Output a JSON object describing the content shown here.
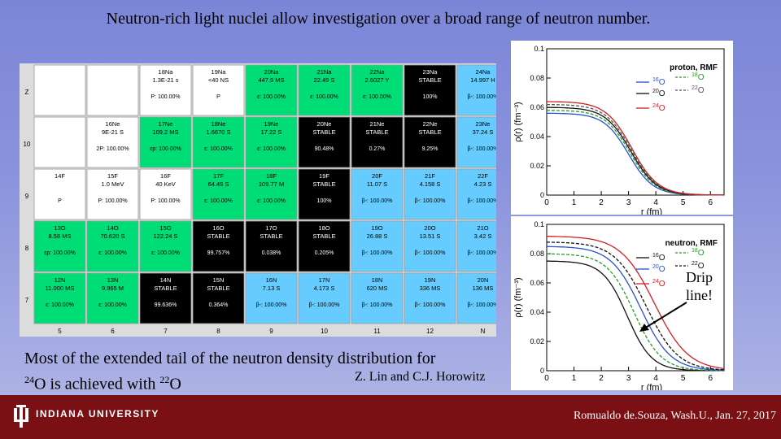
{
  "title": "Neutron-rich light nuclei allow investigation over a broad range of neutron number.",
  "caption": {
    "line1": "Most of the extended tail of the neutron density distribution for",
    "iso1_mass": "24",
    "iso1_sym": "O",
    "line2_mid": " is achieved with ",
    "iso2_mass": "22",
    "iso2_sym": "O"
  },
  "authors": "Z. Lin and C.J. Horowitz",
  "drip_note": [
    "Drip",
    "line!"
  ],
  "footer": {
    "university": "INDIANA UNIVERSITY",
    "credit": "Romualdo de.Souza, Wash.U., Jan. 27, 2017"
  },
  "colors": {
    "stable": "#000000",
    "beta_minus": "#66ccff",
    "beta_plus": "#ff6b8a",
    "ec": "#00dd77",
    "proton": "#ffffff",
    "n_emit": "#a0d060",
    "green_light": "#9be29b",
    "dark_bg": "#7a0f14"
  },
  "nuclide_chart": {
    "z_labels": [
      "Z",
      "10",
      "9",
      "8",
      "7"
    ],
    "n_labels": [
      "5",
      "6",
      "7",
      "8",
      "9",
      "10",
      "11",
      "12",
      "N"
    ],
    "rows": [
      [
        {
          "n": "",
          "hl": "",
          "dm": "",
          "c": "empty"
        },
        {
          "n": "",
          "hl": "",
          "dm": "",
          "c": "empty"
        },
        {
          "n": "18Na",
          "hl": "1.3E-21 s",
          "dm": "P: 100.00%",
          "c": "proton"
        },
        {
          "n": "19Na",
          "hl": "<40 NS",
          "dm": "P",
          "c": "proton"
        },
        {
          "n": "20Na",
          "hl": "447.9 MS",
          "dm": "ε: 100.00%",
          "c": "ec"
        },
        {
          "n": "21Na",
          "hl": "22.49 S",
          "dm": "ε: 100.00%",
          "c": "ec"
        },
        {
          "n": "22Na",
          "hl": "2.6027 Y",
          "dm": "ε: 100.00%",
          "c": "ec"
        },
        {
          "n": "23Na",
          "hl": "STABLE",
          "dm": "100%",
          "c": "stable"
        },
        {
          "n": "24Na",
          "hl": "14.997 H",
          "dm": "β-: 100.00%",
          "c": "beta"
        }
      ],
      [
        {
          "n": "",
          "hl": "",
          "dm": "",
          "c": "empty"
        },
        {
          "n": "16Ne",
          "hl": "9E-21 S",
          "dm": "2P: 100.00%",
          "c": "proton"
        },
        {
          "n": "17Ne",
          "hl": "109.2 MS",
          "dm": "εp: 100.00%",
          "c": "ec"
        },
        {
          "n": "18Ne",
          "hl": "1.6670 S",
          "dm": "ε: 100.00%",
          "c": "ec"
        },
        {
          "n": "19Ne",
          "hl": "17.22 S",
          "dm": "ε: 100.00%",
          "c": "ec"
        },
        {
          "n": "20Ne",
          "hl": "STABLE",
          "dm": "90.48%",
          "c": "stable"
        },
        {
          "n": "21Ne",
          "hl": "STABLE",
          "dm": "0.27%",
          "c": "stable"
        },
        {
          "n": "22Ne",
          "hl": "STABLE",
          "dm": "9.25%",
          "c": "stable"
        },
        {
          "n": "23Ne",
          "hl": "37.24 S",
          "dm": "β-: 100.00%",
          "c": "beta"
        }
      ],
      [
        {
          "n": "14F",
          "hl": "",
          "dm": "P",
          "c": "proton"
        },
        {
          "n": "15F",
          "hl": "1.0 MeV",
          "dm": "P: 100.00%",
          "c": "proton"
        },
        {
          "n": "16F",
          "hl": "40 KeV",
          "dm": "P: 100.00%",
          "c": "proton"
        },
        {
          "n": "17F",
          "hl": "64.49 S",
          "dm": "ε: 100.00%",
          "c": "ec"
        },
        {
          "n": "18F",
          "hl": "109.77 M",
          "dm": "ε: 100.00%",
          "c": "ec"
        },
        {
          "n": "19F",
          "hl": "STABLE",
          "dm": "100%",
          "c": "stable"
        },
        {
          "n": "20F",
          "hl": "11.07 S",
          "dm": "β-: 100.00%",
          "c": "beta"
        },
        {
          "n": "21F",
          "hl": "4.158 S",
          "dm": "β-: 100.00%",
          "c": "beta"
        },
        {
          "n": "22F",
          "hl": "4.23 S",
          "dm": "β-: 100.00%",
          "c": "beta"
        }
      ],
      [
        {
          "n": "13O",
          "hl": "8.58 MS",
          "dm": "εp: 100.00%",
          "c": "ec"
        },
        {
          "n": "14O",
          "hl": "70.620 S",
          "dm": "ε: 100.00%",
          "c": "ec"
        },
        {
          "n": "15O",
          "hl": "122.24 S",
          "dm": "ε: 100.00%",
          "c": "ec"
        },
        {
          "n": "16O",
          "hl": "STABLE",
          "dm": "99.757%",
          "c": "stable"
        },
        {
          "n": "17O",
          "hl": "STABLE",
          "dm": "0.038%",
          "c": "stable"
        },
        {
          "n": "18O",
          "hl": "STABLE",
          "dm": "0.205%",
          "c": "stable"
        },
        {
          "n": "19O",
          "hl": "26.88 S",
          "dm": "β-: 100.00%",
          "c": "beta"
        },
        {
          "n": "20O",
          "hl": "13.51 S",
          "dm": "β-: 100.00%",
          "c": "beta"
        },
        {
          "n": "21O",
          "hl": "3.42 S",
          "dm": "β-: 100.00%",
          "c": "beta"
        }
      ],
      [
        {
          "n": "12N",
          "hl": "11.000 MS",
          "dm": "ε: 100.00%",
          "c": "ec"
        },
        {
          "n": "13N",
          "hl": "9.965 M",
          "dm": "ε: 100.00%",
          "c": "ec"
        },
        {
          "n": "14N",
          "hl": "STABLE",
          "dm": "99.636%",
          "c": "stable"
        },
        {
          "n": "15N",
          "hl": "STABLE",
          "dm": "0.364%",
          "c": "stable"
        },
        {
          "n": "16N",
          "hl": "7.13 S",
          "dm": "β-: 100.00%",
          "c": "beta"
        },
        {
          "n": "17N",
          "hl": "4.173 S",
          "dm": "β-: 100.00%",
          "c": "beta"
        },
        {
          "n": "18N",
          "hl": "620 MS",
          "dm": "β-: 100.00%",
          "c": "beta"
        },
        {
          "n": "19N",
          "hl": "336 MS",
          "dm": "β-: 100.00%",
          "c": "beta"
        },
        {
          "n": "20N",
          "hl": "136 MS",
          "dm": "β-: 100.00%",
          "c": "beta"
        }
      ]
    ]
  },
  "chart_data": [
    {
      "type": "line",
      "ylabel": "ρ(r) (fm⁻³)",
      "xlabel": "r (fm)",
      "xlim": [
        0,
        6.5
      ],
      "ylim": [
        0,
        0.1
      ],
      "xticks": [
        0,
        1,
        2,
        3,
        4,
        5,
        6
      ],
      "yticks": [
        "0.1",
        "0.08",
        "0.06",
        "0.04",
        "0.02",
        "0"
      ],
      "legend_title": "proton, RMF",
      "series": [
        {
          "name": "16O",
          "color": "#2a4fd0",
          "r0": 3.0,
          "a": 0.45,
          "rho0": 0.056
        },
        {
          "name": "18O",
          "color": "#2a9a2a",
          "r0": 3.05,
          "a": 0.46,
          "rho0": 0.058
        },
        {
          "name": "20O",
          "color": "#111111",
          "r0": 3.08,
          "a": 0.47,
          "rho0": 0.06
        },
        {
          "name": "22O",
          "color": "#555555",
          "r0": 3.1,
          "a": 0.48,
          "rho0": 0.062
        },
        {
          "name": "24O",
          "color": "#d02020",
          "r0": 3.12,
          "a": 0.48,
          "rho0": 0.064
        }
      ],
      "legend_labels": [
        {
          "mass": "16",
          "sym": "O",
          "color": "#2a4fd0",
          "style": "solid"
        },
        {
          "mass": "18",
          "sym": "O",
          "color": "#2a9a2a",
          "style": "dash"
        },
        {
          "mass": "20",
          "sym": "O",
          "color": "#111111",
          "style": "solid"
        },
        {
          "mass": "22",
          "sym": "O",
          "color": "#555555",
          "style": "dash"
        },
        {
          "mass": "24",
          "sym": "O",
          "color": "#d02020",
          "style": "solid"
        }
      ]
    },
    {
      "type": "line",
      "ylabel": "ρ(r) (fm⁻³)",
      "xlabel": "r (fm)",
      "xlim": [
        0,
        6.5
      ],
      "ylim": [
        0,
        0.1
      ],
      "xticks": [
        0,
        1,
        2,
        3,
        4,
        5,
        6
      ],
      "yticks": [
        "0.1",
        "0.08",
        "0.06",
        "0.04",
        "0.02",
        "0"
      ],
      "legend_title": "neutron, RMF",
      "series": [
        {
          "name": "16O",
          "color": "#111111",
          "r0": 2.95,
          "a": 0.45,
          "rho0": 0.075
        },
        {
          "name": "18O",
          "color": "#2a9a2a",
          "r0": 3.2,
          "a": 0.5,
          "rho0": 0.08
        },
        {
          "name": "20O",
          "color": "#2a4fd0",
          "r0": 3.45,
          "a": 0.55,
          "rho0": 0.085
        },
        {
          "name": "22O",
          "color": "#111111",
          "r0": 3.65,
          "a": 0.58,
          "rho0": 0.088
        },
        {
          "name": "24O",
          "color": "#d02020",
          "r0": 3.95,
          "a": 0.62,
          "rho0": 0.092
        }
      ],
      "legend_labels": [
        {
          "mass": "16",
          "sym": "O",
          "color": "#111111",
          "style": "solid"
        },
        {
          "mass": "18",
          "sym": "O",
          "color": "#2a9a2a",
          "style": "dash"
        },
        {
          "mass": "20",
          "sym": "O",
          "color": "#2a4fd0",
          "style": "solid"
        },
        {
          "mass": "22",
          "sym": "O",
          "color": "#111111",
          "style": "dash"
        },
        {
          "mass": "24",
          "sym": "O",
          "color": "#d02020",
          "style": "solid"
        }
      ]
    }
  ]
}
